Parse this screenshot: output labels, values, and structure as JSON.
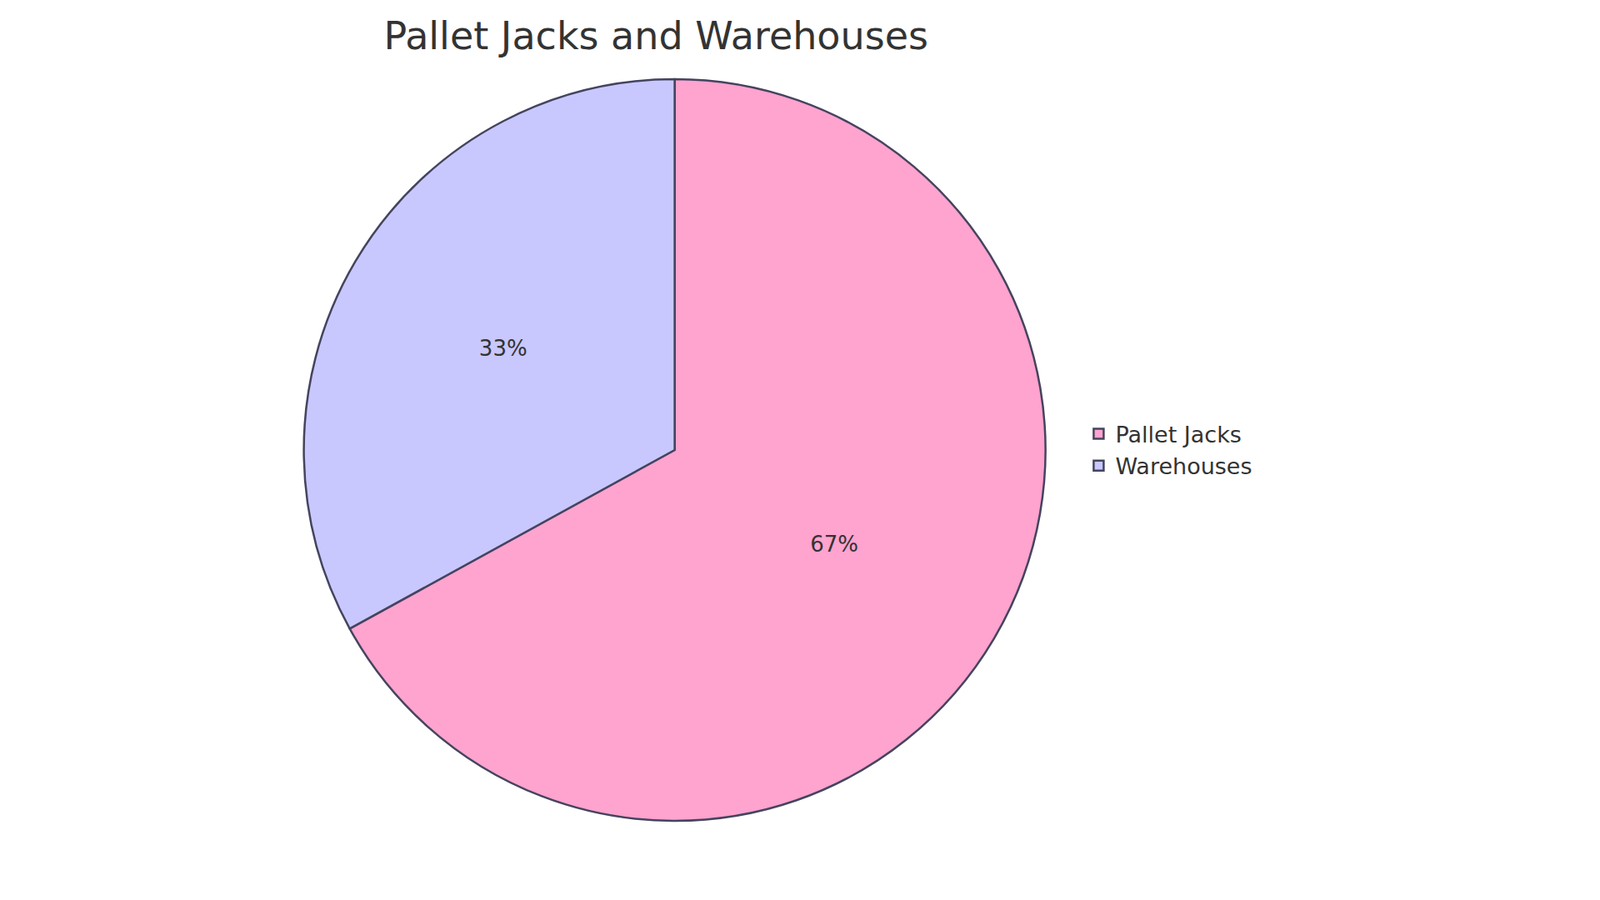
{
  "chart_data": {
    "type": "pie",
    "title": "Pallet Jacks and Warehouses",
    "categories": [
      "Pallet Jacks",
      "Warehouses"
    ],
    "values": [
      67,
      33
    ],
    "value_labels": [
      "67%",
      "33%"
    ],
    "colors": [
      "#ffa3cf",
      "#c8c8ff"
    ],
    "data_labels": true,
    "legend": "right"
  }
}
